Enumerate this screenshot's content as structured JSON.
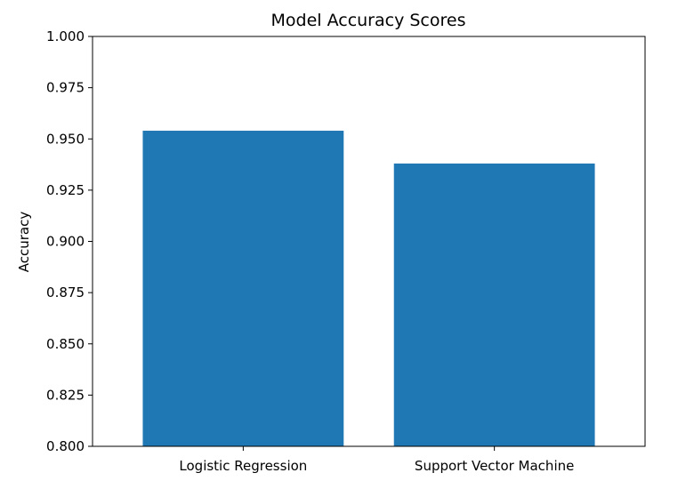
{
  "chart_data": {
    "type": "bar",
    "title": "Model Accuracy Scores",
    "xlabel": "",
    "ylabel": "Accuracy",
    "categories": [
      "Logistic Regression",
      "Support Vector Machine"
    ],
    "values": [
      0.954,
      0.938
    ],
    "ylim": [
      0.8,
      1.0
    ],
    "yticks": [
      "0.800",
      "0.825",
      "0.850",
      "0.875",
      "0.900",
      "0.925",
      "0.950",
      "0.975",
      "1.000"
    ],
    "grid": false,
    "legend": "none",
    "colors": {
      "bar": "#1f77b4",
      "axis": "#000000"
    }
  }
}
